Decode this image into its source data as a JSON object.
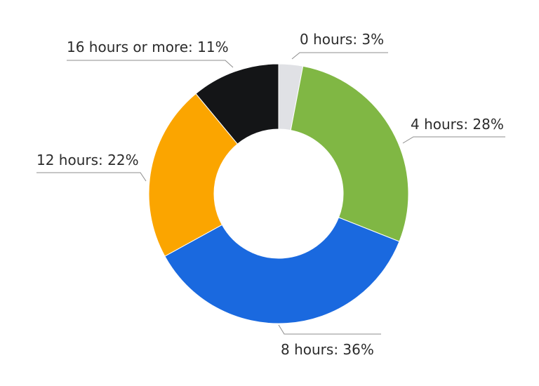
{
  "chart_data": {
    "type": "pie",
    "variant": "donut",
    "slices": [
      {
        "label": "0 hours",
        "value": 3,
        "display": "0 hours: 3%",
        "color": "#e0e1e5"
      },
      {
        "label": "4 hours",
        "value": 28,
        "display": "4 hours: 28%",
        "color": "#80b744"
      },
      {
        "label": "8 hours",
        "value": 36,
        "display": "8 hours: 36%",
        "color": "#1a69df"
      },
      {
        "label": "12 hours",
        "value": 22,
        "display": "12 hours: 22%",
        "color": "#fba500"
      },
      {
        "label": "16 hours or more",
        "value": 11,
        "display": "16 hours or more: 11%",
        "color": "#141517"
      }
    ],
    "unit": "%",
    "start_angle": "12 o'clock",
    "direction": "clockwise",
    "legend": "none",
    "labels": "outside with leader lines"
  }
}
